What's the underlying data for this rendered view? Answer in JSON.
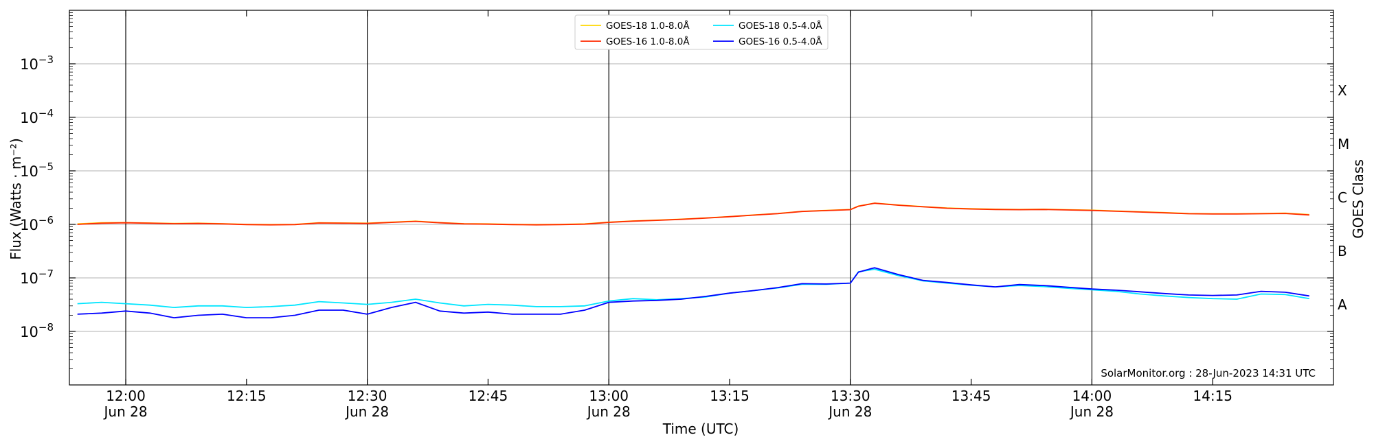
{
  "chart_data": {
    "type": "line",
    "title": "",
    "xlabel": "Time (UTC)",
    "ylabel": "Flux (Watts · m⁻²)",
    "y2label": "GOES Class",
    "yscale": "log",
    "ylim": [
      1e-09,
      0.01
    ],
    "xlim": [
      "11:53",
      "14:30"
    ],
    "grid": true,
    "legend_position": "top-center",
    "y_ticks": [
      {
        "value": 1e-08,
        "base": "10",
        "exp": "−8"
      },
      {
        "value": 1e-07,
        "base": "10",
        "exp": "−7"
      },
      {
        "value": 1e-06,
        "base": "10",
        "exp": "−6"
      },
      {
        "value": 1e-05,
        "base": "10",
        "exp": "−5"
      },
      {
        "value": 0.0001,
        "base": "10",
        "exp": "−4"
      },
      {
        "value": 0.001,
        "base": "10",
        "exp": "−3"
      }
    ],
    "classes": [
      {
        "label": "A",
        "value": 3.16e-08
      },
      {
        "label": "B",
        "value": 3.16e-07
      },
      {
        "label": "C",
        "value": 3.16e-06
      },
      {
        "label": "M",
        "value": 3.16e-05
      },
      {
        "label": "X",
        "value": 0.000316
      }
    ],
    "x_ticks": [
      {
        "time": "12:00",
        "line1": "12:00",
        "line2": "Jun 28",
        "major": true
      },
      {
        "time": "12:15",
        "line1": "12:15",
        "line2": "",
        "major": false
      },
      {
        "time": "12:30",
        "line1": "12:30",
        "line2": "Jun 28",
        "major": true
      },
      {
        "time": "12:45",
        "line1": "12:45",
        "line2": "",
        "major": false
      },
      {
        "time": "13:00",
        "line1": "13:00",
        "line2": "Jun 28",
        "major": true
      },
      {
        "time": "13:15",
        "line1": "13:15",
        "line2": "",
        "major": false
      },
      {
        "time": "13:30",
        "line1": "13:30",
        "line2": "Jun 28",
        "major": true
      },
      {
        "time": "13:45",
        "line1": "13:45",
        "line2": "",
        "major": false
      },
      {
        "time": "14:00",
        "line1": "14:00",
        "line2": "Jun 28",
        "major": true
      },
      {
        "time": "14:15",
        "line1": "14:15",
        "line2": "",
        "major": false
      }
    ],
    "x": [
      "11:54",
      "11:57",
      "12:00",
      "12:03",
      "12:06",
      "12:09",
      "12:12",
      "12:15",
      "12:18",
      "12:21",
      "12:24",
      "12:27",
      "12:30",
      "12:33",
      "12:36",
      "12:39",
      "12:42",
      "12:45",
      "12:48",
      "12:51",
      "12:54",
      "12:57",
      "13:00",
      "13:03",
      "13:06",
      "13:09",
      "13:12",
      "13:15",
      "13:18",
      "13:21",
      "13:24",
      "13:27",
      "13:30",
      "13:31",
      "13:33",
      "13:36",
      "13:39",
      "13:42",
      "13:45",
      "13:48",
      "13:51",
      "13:54",
      "13:57",
      "14:00",
      "14:03",
      "14:06",
      "14:09",
      "14:12",
      "14:15",
      "14:18",
      "14:21",
      "14:24",
      "14:27"
    ],
    "series": [
      {
        "name": "GOES-18 1.0-8.0Å",
        "color": "#ffd700",
        "values": [
          1.02e-06,
          1.07e-06,
          1.08e-06,
          1.06e-06,
          1.04e-06,
          1.05e-06,
          1.03e-06,
          1e-06,
          9.9e-07,
          1e-06,
          1.07e-06,
          1.06e-06,
          1.05e-06,
          1.1e-06,
          1.15e-06,
          1.08e-06,
          1.03e-06,
          1.02e-06,
          1e-06,
          9.9e-07,
          1e-06,
          1.02e-06,
          1.1e-06,
          1.16e-06,
          1.2e-06,
          1.25e-06,
          1.32e-06,
          1.4e-06,
          1.5e-06,
          1.6e-06,
          1.75e-06,
          1.82e-06,
          1.9e-06,
          2.2e-06,
          2.5e-06,
          2.3e-06,
          2.15e-06,
          2.02e-06,
          1.96e-06,
          1.92e-06,
          1.9e-06,
          1.92e-06,
          1.88e-06,
          1.84e-06,
          1.78e-06,
          1.72e-06,
          1.66e-06,
          1.6e-06,
          1.58e-06,
          1.58e-06,
          1.6e-06,
          1.62e-06,
          1.52e-06
        ]
      },
      {
        "name": "GOES-16 1.0-8.0Å",
        "color": "#ff2a00",
        "values": [
          1e-06,
          1.05e-06,
          1.07e-06,
          1.05e-06,
          1.03e-06,
          1.04e-06,
          1.02e-06,
          9.9e-07,
          9.8e-07,
          9.9e-07,
          1.06e-06,
          1.05e-06,
          1.04e-06,
          1.09e-06,
          1.14e-06,
          1.07e-06,
          1.02e-06,
          1.01e-06,
          9.9e-07,
          9.8e-07,
          9.9e-07,
          1.01e-06,
          1.09e-06,
          1.15e-06,
          1.19e-06,
          1.24e-06,
          1.31e-06,
          1.39e-06,
          1.49e-06,
          1.59e-06,
          1.74e-06,
          1.81e-06,
          1.88e-06,
          2.18e-06,
          2.48e-06,
          2.28e-06,
          2.13e-06,
          2e-06,
          1.94e-06,
          1.9e-06,
          1.88e-06,
          1.9e-06,
          1.86e-06,
          1.82e-06,
          1.76e-06,
          1.7e-06,
          1.64e-06,
          1.58e-06,
          1.56e-06,
          1.56e-06,
          1.58e-06,
          1.6e-06,
          1.5e-06
        ]
      },
      {
        "name": "GOES-18 0.5-4.0Å",
        "color": "#00e5ff",
        "values": [
          3.3e-08,
          3.5e-08,
          3.3e-08,
          3.1e-08,
          2.8e-08,
          3e-08,
          3e-08,
          2.8e-08,
          2.9e-08,
          3.1e-08,
          3.6e-08,
          3.4e-08,
          3.2e-08,
          3.5e-08,
          4e-08,
          3.4e-08,
          3e-08,
          3.2e-08,
          3.1e-08,
          2.9e-08,
          2.9e-08,
          3e-08,
          3.7e-08,
          4.1e-08,
          3.9e-08,
          4.1e-08,
          4.4e-08,
          5.2e-08,
          5.8e-08,
          6.5e-08,
          7.6e-08,
          7.6e-08,
          8e-08,
          1.3e-07,
          1.45e-07,
          1.1e-07,
          8.8e-08,
          8e-08,
          7.3e-08,
          6.8e-08,
          7.2e-08,
          6.9e-08,
          6.4e-08,
          6e-08,
          5.6e-08,
          5e-08,
          4.6e-08,
          4.3e-08,
          4.1e-08,
          4e-08,
          5e-08,
          4.9e-08,
          4.1e-08
        ]
      },
      {
        "name": "GOES-16 0.5-4.0Å",
        "color": "#0000ff",
        "values": [
          2.1e-08,
          2.2e-08,
          2.4e-08,
          2.2e-08,
          1.8e-08,
          2e-08,
          2.1e-08,
          1.8e-08,
          1.8e-08,
          2e-08,
          2.5e-08,
          2.5e-08,
          2.1e-08,
          2.8e-08,
          3.5e-08,
          2.4e-08,
          2.2e-08,
          2.3e-08,
          2.1e-08,
          2.1e-08,
          2.1e-08,
          2.5e-08,
          3.5e-08,
          3.7e-08,
          3.8e-08,
          4e-08,
          4.5e-08,
          5.2e-08,
          5.8e-08,
          6.6e-08,
          7.8e-08,
          7.7e-08,
          8e-08,
          1.28e-07,
          1.55e-07,
          1.15e-07,
          9e-08,
          8.2e-08,
          7.4e-08,
          6.8e-08,
          7.5e-08,
          7.2e-08,
          6.7e-08,
          6.2e-08,
          5.9e-08,
          5.5e-08,
          5.1e-08,
          4.8e-08,
          4.7e-08,
          4.8e-08,
          5.6e-08,
          5.4e-08,
          4.6e-08
        ]
      }
    ],
    "annotation": "SolarMonitor.org : 28-Jun-2023 14:31 UTC"
  }
}
